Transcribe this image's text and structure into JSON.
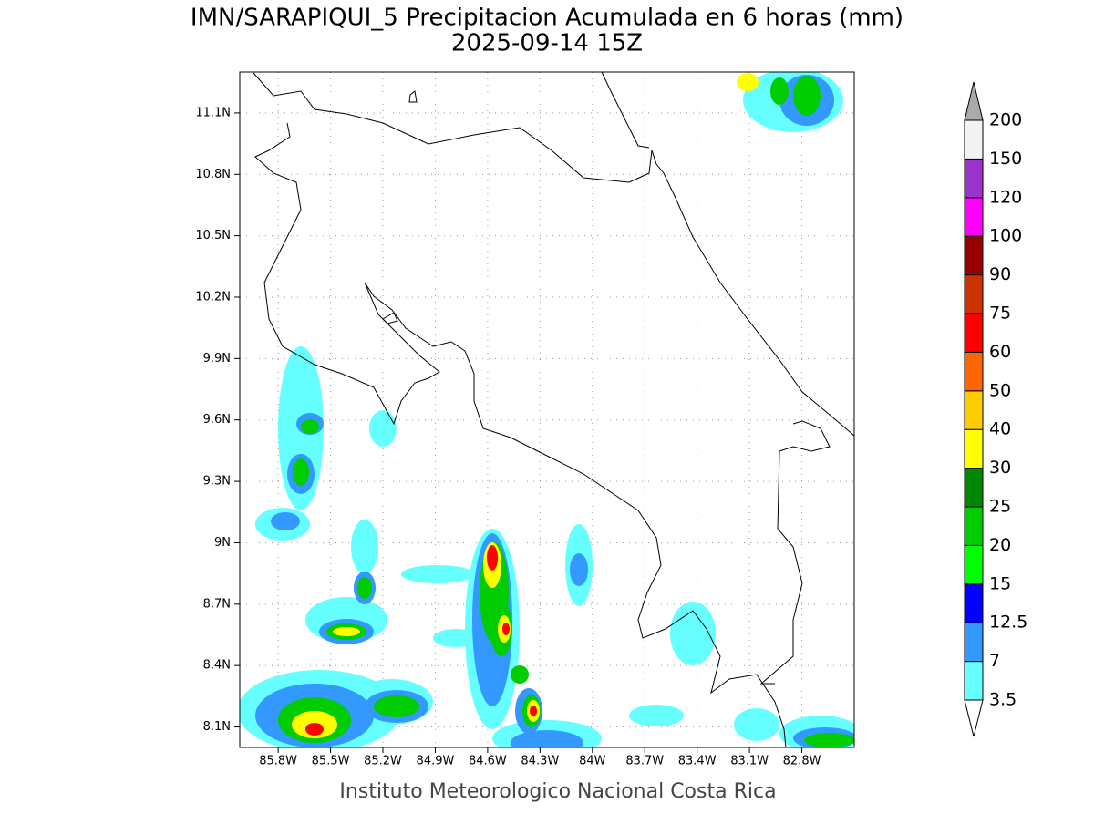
{
  "title": "IMN/SARAPIQUI_5 Precipitacion Acumulada en 6 horas (mm)",
  "subtitle": "2025-09-14 15Z",
  "footer": "Instituto Meteorologico Nacional Costa Rica",
  "map": {
    "xlim": [
      -86.02,
      -82.5
    ],
    "ylim": [
      8.0,
      11.3
    ],
    "xticks": [
      {
        "value": -85.8,
        "label": "85.8W"
      },
      {
        "value": -85.5,
        "label": "85.5W"
      },
      {
        "value": -85.2,
        "label": "85.2W"
      },
      {
        "value": -84.9,
        "label": "84.9W"
      },
      {
        "value": -84.6,
        "label": "84.6W"
      },
      {
        "value": -84.3,
        "label": "84.3W"
      },
      {
        "value": -84.0,
        "label": "84W"
      },
      {
        "value": -83.7,
        "label": "83.7W"
      },
      {
        "value": -83.4,
        "label": "83.4W"
      },
      {
        "value": -83.1,
        "label": "83.1W"
      },
      {
        "value": -82.8,
        "label": "82.8W"
      }
    ],
    "yticks": [
      {
        "value": 8.1,
        "label": "8.1N"
      },
      {
        "value": 8.4,
        "label": "8.4N"
      },
      {
        "value": 8.7,
        "label": "8.7N"
      },
      {
        "value": 9.0,
        "label": "9N"
      },
      {
        "value": 9.3,
        "label": "9.3N"
      },
      {
        "value": 9.6,
        "label": "9.6N"
      },
      {
        "value": 9.9,
        "label": "9.9N"
      },
      {
        "value": 10.2,
        "label": "10.2N"
      },
      {
        "value": 10.5,
        "label": "10.5N"
      },
      {
        "value": 10.8,
        "label": "10.8N"
      },
      {
        "value": 11.1,
        "label": "11.1N"
      }
    ],
    "grid": true
  },
  "colorbar": {
    "levels": [
      3.5,
      7,
      12.5,
      15,
      20,
      25,
      30,
      40,
      50,
      60,
      75,
      90,
      100,
      120,
      150,
      200
    ],
    "colors": [
      "#66ffff",
      "#3399ff",
      "#0000ff",
      "#00ff00",
      "#00cc00",
      "#008800",
      "#ffff00",
      "#ffcc00",
      "#ff6600",
      "#ff0000",
      "#cc3300",
      "#990000",
      "#ff00ff",
      "#9933cc",
      "#f2f2f2"
    ],
    "under_color": "#ffffff",
    "over_color": "#aaaaaa"
  }
}
